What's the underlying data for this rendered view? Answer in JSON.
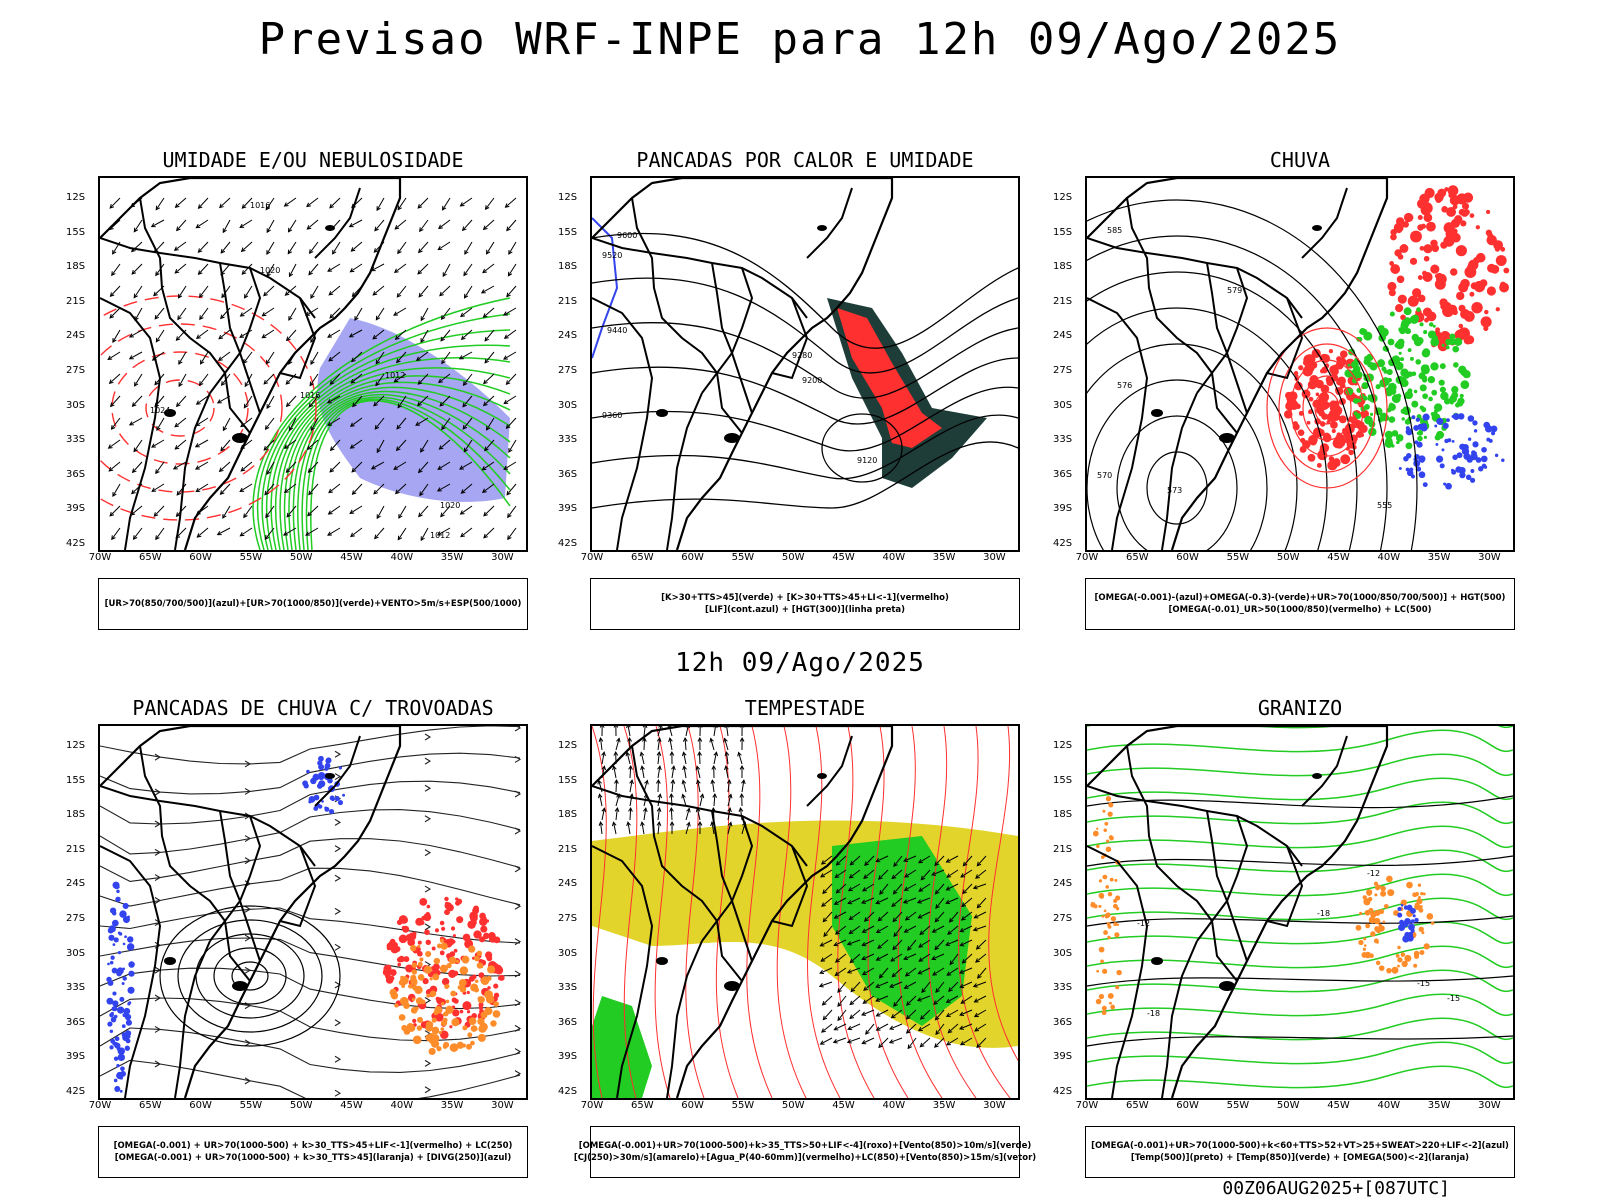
{
  "main_title": "Previsao WRF-INPE  para 12h 09/Ago/2025",
  "mid_title": "12h 09/Ago/2025",
  "footer": "00Z06AUG2025+[087UTC]",
  "lat_labels": [
    "12S",
    "15S",
    "18S",
    "21S",
    "24S",
    "27S",
    "30S",
    "33S",
    "36S",
    "39S",
    "42S"
  ],
  "lon_labels": [
    "70W",
    "65W",
    "60W",
    "55W",
    "50W",
    "45W",
    "40W",
    "35W",
    "30W"
  ],
  "colors": {
    "red": "#ff3030",
    "green": "#22cc22",
    "blue": "#3344ee",
    "purple": "#8888ee",
    "yellow": "#e3d42c",
    "orange": "#ff8c2a",
    "dark": "#1f3d38"
  },
  "panels": [
    {
      "title": "UMIDADE E/OU NEBULOSIDADE",
      "legend": [
        "[UR>70(850/700/500)](azul)+[UR>70(1000/850)](verde)+VENTO>5m/s+ESP(500/1000)"
      ],
      "contour_labels": [
        "1016",
        "1020",
        "1024",
        "1012",
        "1016",
        "1020",
        "1012"
      ]
    },
    {
      "title": "PANCADAS POR CALOR E UMIDADE",
      "legend": [
        "[K>30+TTS>45](verde) + [K>30+TTS>45+LI<-1](vermelho)",
        "[LIF](cont.azul) + [HGT(300)](linha preta)"
      ],
      "contour_labels": [
        "9600",
        "9520",
        "9440",
        "9360",
        "9280",
        "9200",
        "9120"
      ]
    },
    {
      "title": "CHUVA",
      "legend": [
        "[OMEGA(-0.001)-(azul)+OMEGA(-0.3)-(verde)+UR>70(1000/850/700/500)] + HGT(500)",
        "[OMEGA(-0.01)_UR>50(1000/850)(vermelho) + LC(500)"
      ],
      "contour_labels": [
        "585",
        "579",
        "576",
        "570",
        "573",
        "555"
      ]
    },
    {
      "title": "PANCADAS DE CHUVA C/ TROVOADAS",
      "legend": [
        "[OMEGA(-0.001) + UR>70(1000-500) + k>30_TTS>45+LIF<-1](vermelho) + LC(250)",
        "[OMEGA(-0.001) + UR>70(1000-500) + k>30_TTS>45](laranja) + [DIVG(250)](azul)"
      ],
      "contour_labels": []
    },
    {
      "title": "TEMPESTADE",
      "legend": [
        "[OMEGA(-0.001)+UR>70(1000-500)+k>35_TTS>50+LIF<-4](roxo)+[Vento(850)>10m/s](verde)",
        "[CJ(250)>30m/s](amarelo)+[Agua_P(40-60mm)](vermelho)+LC(850)+[Vento(850)>15m/s](vetor)"
      ],
      "contour_labels": []
    },
    {
      "title": "GRANIZO",
      "legend": [
        "[OMEGA(-0.001)+UR>70(1000-500)+k<60+TTS>52+VT>25+SWEAT>220+LIF<-2](azul)",
        "[Temp(500)](preto) + [Temp(850)](verde) + [OMEGA(500)<-2](laranja)"
      ],
      "contour_labels": [
        "-12",
        "-15",
        "-18",
        "-12",
        "-15",
        "-18"
      ]
    }
  ]
}
